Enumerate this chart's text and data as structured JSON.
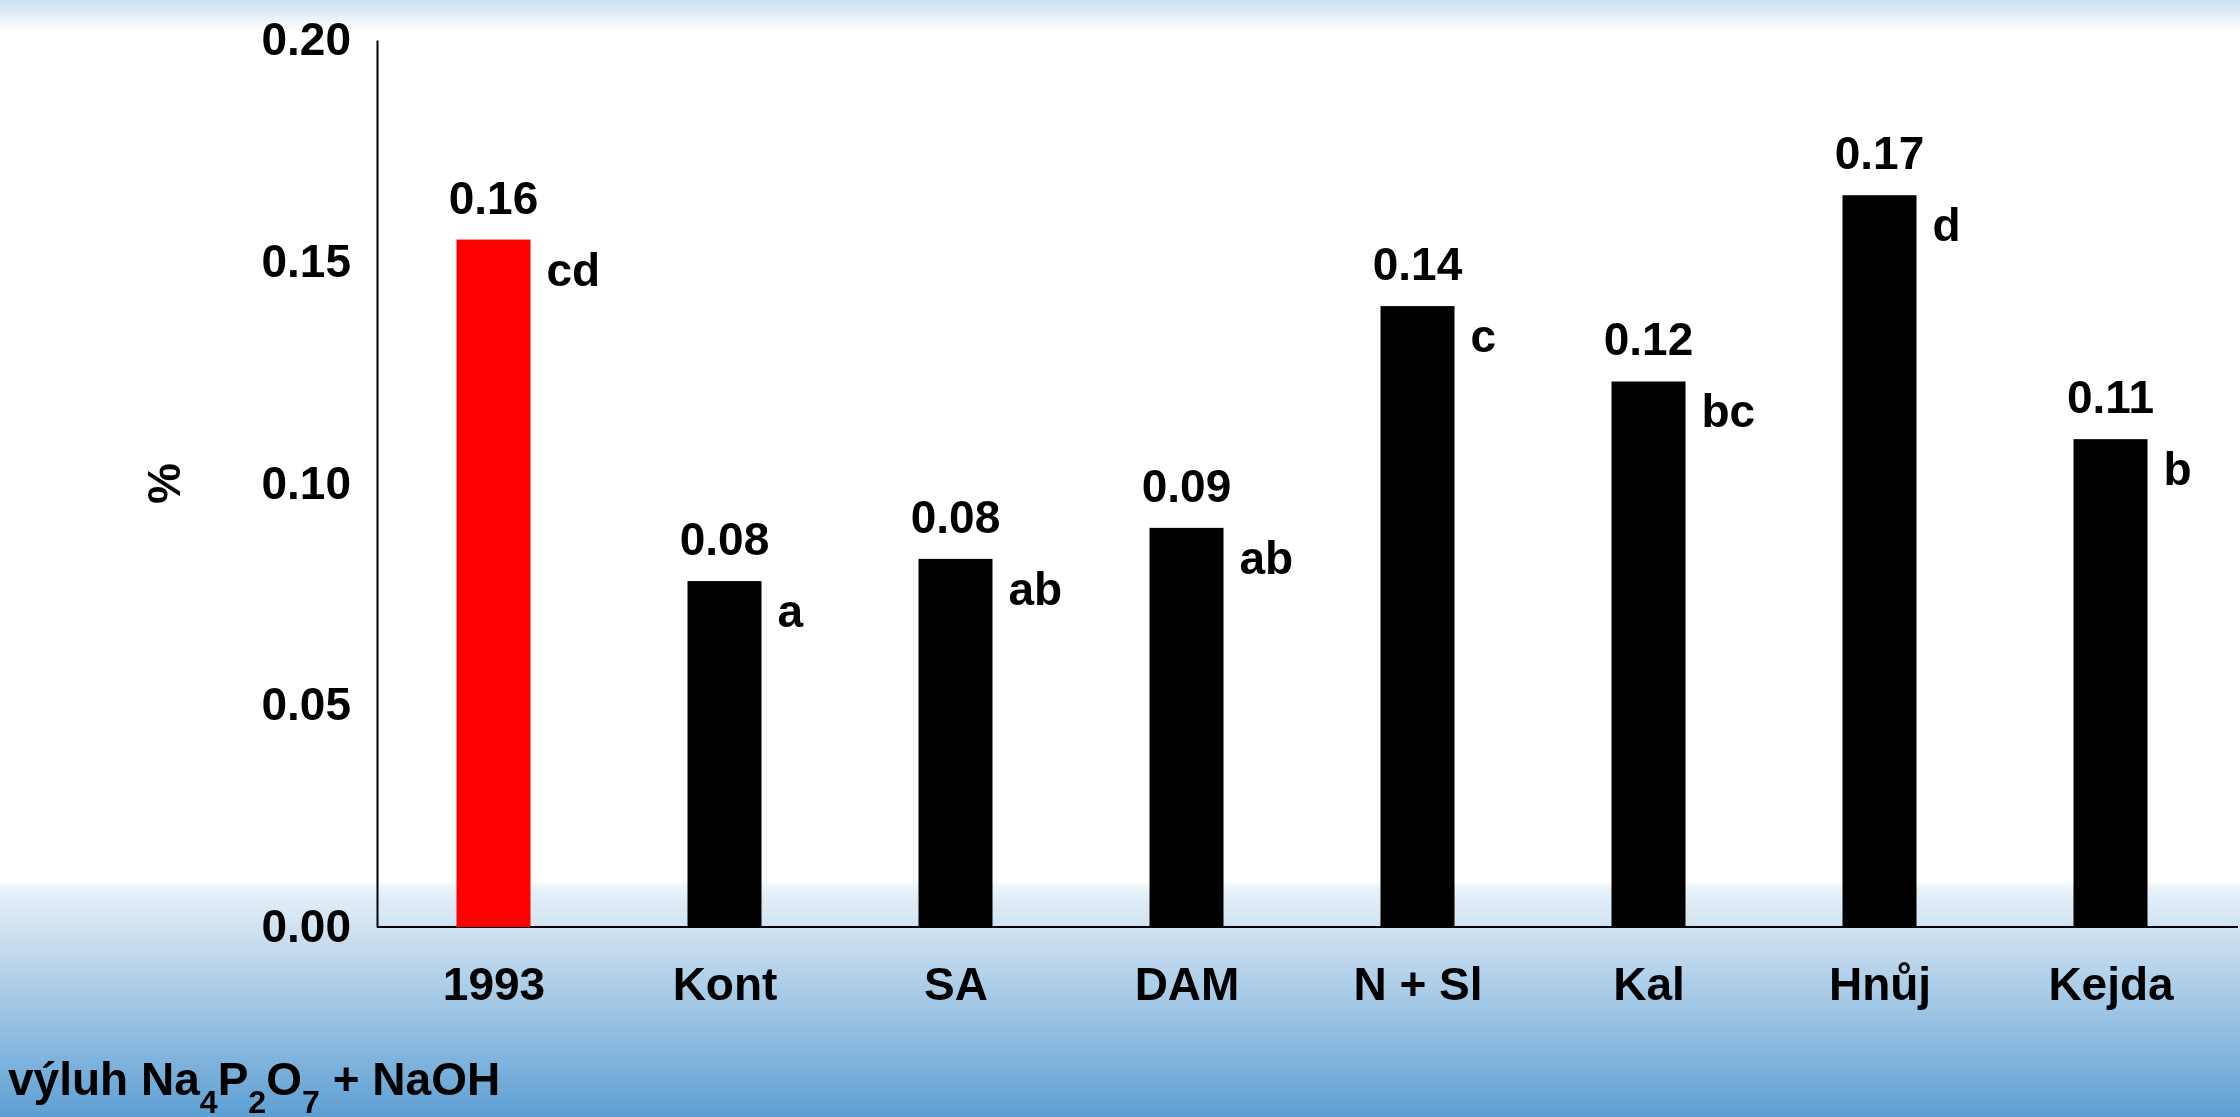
{
  "chart_data": {
    "type": "bar",
    "categories": [
      "1993",
      "Kont",
      "SA",
      "DAM",
      "N + Sl",
      "Kal",
      "Hnůj",
      "Kejda"
    ],
    "values": [
      0.155,
      0.078,
      0.083,
      0.09,
      0.14,
      0.123,
      0.165,
      0.11
    ],
    "value_labels": [
      "0.16",
      "0.08",
      "0.08",
      "0.09",
      "0.14",
      "0.12",
      "0.17",
      "0.11"
    ],
    "colors": [
      "#ff0000",
      "#000000",
      "#000000",
      "#000000",
      "#000000",
      "#000000",
      "#000000",
      "#000000"
    ],
    "ylabel": "%",
    "xlabel": "výluh Na$_{4}$P$_{2}$O$_{7}$ + NaOH",
    "ylim": [
      0,
      0.2
    ],
    "yticks": [
      {
        "value": 0,
        "label": "0.00"
      },
      {
        "value": 0.05,
        "label": "0.05"
      },
      {
        "value": 0.1,
        "label": "0.10"
      },
      {
        "value": 0.15,
        "label": "0.15"
      },
      {
        "value": 0.2,
        "label": "0.20"
      }
    ],
    "grid": false,
    "annotations": [
      {
        "text": "cd",
        "x": "1993",
        "y": 0.155
      },
      {
        "text": "a",
        "x": "Kont",
        "y": 0.078
      },
      {
        "text": "ab",
        "x": "SA",
        "y": 0.083
      },
      {
        "text": "ab",
        "x": "DAM",
        "y": 0.09
      },
      {
        "text": "c",
        "x": "N + Sl",
        "y": 0.14
      },
      {
        "text": "bc",
        "x": "Kal",
        "y": 0.123
      },
      {
        "text": "d",
        "x": "Hnůj",
        "y": 0.165
      },
      {
        "text": "b",
        "x": "Kejda",
        "y": 0.11
      }
    ]
  }
}
